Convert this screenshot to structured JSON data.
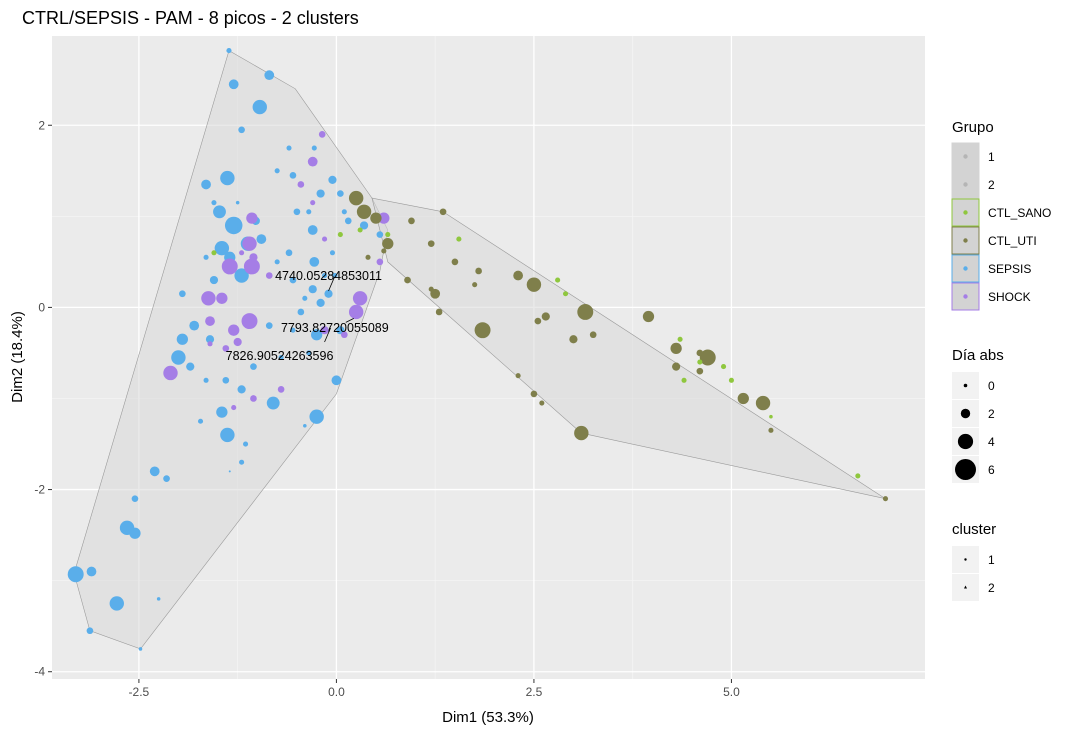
{
  "chart_data": {
    "type": "scatter",
    "title": "CTRL/SEPSIS - PAM - 8 picos - 2 clusters",
    "xlabel": "Dim1 (53.3%)",
    "ylabel": "Dim2 (18.4%)",
    "xlim": [
      -3.6,
      7.45
    ],
    "ylim": [
      -4.08,
      2.98
    ],
    "xticks": [
      -2.5,
      0.0,
      2.5,
      5.0
    ],
    "xtick_labels": [
      "-2.5",
      "0.0",
      "2.5",
      "5.0"
    ],
    "yticks": [
      -4,
      -2,
      0,
      2
    ],
    "ytick_labels": [
      "-4",
      "-2",
      "0",
      "2"
    ],
    "grid": true,
    "background": "#ebebeb",
    "colors": {
      "CTL_SANO": "#8fc73e",
      "CTL_UTI": "#7f7f4b",
      "SEPSIS": "#5aaeea",
      "SHOCK": "#a57ee6",
      "hull": "#d9d9d9"
    },
    "hulls": [
      {
        "cluster": "1",
        "points": [
          [
            -1.36,
            2.82
          ],
          [
            -0.52,
            2.4
          ],
          [
            0.45,
            1.2
          ],
          [
            0.65,
            0.85
          ],
          [
            0.55,
            0.4
          ],
          [
            0.0,
            -0.95
          ],
          [
            -2.48,
            -3.75
          ],
          [
            -3.12,
            -3.55
          ],
          [
            -3.32,
            -2.92
          ],
          [
            -1.36,
            2.82
          ]
        ]
      },
      {
        "cluster": "2",
        "points": [
          [
            0.45,
            1.2
          ],
          [
            1.35,
            1.05
          ],
          [
            6.95,
            -2.1
          ],
          [
            3.1,
            -1.38
          ],
          [
            0.65,
            0.5
          ],
          [
            0.45,
            1.2
          ]
        ]
      }
    ],
    "series": [
      {
        "name": "SEPSIS",
        "points": [
          [
            -1.36,
            2.82,
            1
          ],
          [
            -1.3,
            2.45,
            2.5
          ],
          [
            -0.85,
            2.55,
            2.5
          ],
          [
            -0.97,
            2.2,
            4
          ],
          [
            -1.2,
            1.95,
            1.5
          ],
          [
            -0.75,
            1.5,
            1
          ],
          [
            -1.38,
            1.42,
            4
          ],
          [
            -1.65,
            1.35,
            2.5
          ],
          [
            -1.55,
            1.15,
            1
          ],
          [
            -1.25,
            1.15,
            0.5
          ],
          [
            -1.48,
            1.05,
            3.5
          ],
          [
            -1.3,
            0.9,
            5
          ],
          [
            -1.02,
            0.95,
            2
          ],
          [
            -1.45,
            0.65,
            4
          ],
          [
            -1.12,
            0.7,
            4
          ],
          [
            -0.95,
            0.75,
            2.5
          ],
          [
            -1.65,
            0.55,
            1
          ],
          [
            -1.35,
            0.55,
            3
          ],
          [
            -1.2,
            0.35,
            4
          ],
          [
            -1.55,
            0.3,
            2
          ],
          [
            -1.95,
            0.15,
            1.5
          ],
          [
            -1.8,
            -0.2,
            2.5
          ],
          [
            -1.6,
            -0.35,
            2
          ],
          [
            -1.95,
            -0.35,
            3
          ],
          [
            -2.0,
            -0.55,
            4
          ],
          [
            -1.85,
            -0.65,
            2
          ],
          [
            -1.65,
            -0.8,
            1
          ],
          [
            -1.4,
            -0.8,
            1.5
          ],
          [
            -1.2,
            -0.9,
            2
          ],
          [
            -0.8,
            -1.05,
            3.5
          ],
          [
            -1.45,
            -1.15,
            3
          ],
          [
            -1.72,
            -1.25,
            1
          ],
          [
            -1.38,
            -1.4,
            4
          ],
          [
            -1.15,
            -1.5,
            1
          ],
          [
            -2.3,
            -1.8,
            2.5
          ],
          [
            -2.15,
            -1.88,
            1.5
          ],
          [
            -2.55,
            -2.1,
            1.5
          ],
          [
            -2.65,
            -2.42,
            4
          ],
          [
            -2.55,
            -2.48,
            3
          ],
          [
            -3.3,
            -2.93,
            4.5
          ],
          [
            -3.1,
            -2.9,
            2.5
          ],
          [
            -2.78,
            -3.25,
            4
          ],
          [
            -2.25,
            -3.2,
            0.5
          ],
          [
            -3.12,
            -3.55,
            1.5
          ],
          [
            -2.48,
            -3.75,
            0.5
          ],
          [
            -0.6,
            1.75,
            1
          ],
          [
            -0.55,
            1.45,
            1.5
          ],
          [
            -0.28,
            1.75,
            1
          ],
          [
            -0.2,
            1.25,
            2
          ],
          [
            -0.5,
            1.05,
            1.5
          ],
          [
            -0.3,
            0.85,
            2.5
          ],
          [
            -0.6,
            0.6,
            1.5
          ],
          [
            -0.28,
            0.5,
            2.5
          ],
          [
            -0.15,
            0.35,
            1
          ],
          [
            -0.05,
            0.6,
            1
          ],
          [
            -0.3,
            0.2,
            2
          ],
          [
            -0.2,
            0.05,
            2
          ],
          [
            -0.45,
            -0.05,
            1.5
          ],
          [
            -0.25,
            -0.3,
            3
          ],
          [
            0.05,
            -0.25,
            2
          ],
          [
            0.0,
            -0.8,
            2.5
          ],
          [
            -0.25,
            -1.2,
            4
          ],
          [
            -0.35,
            -0.5,
            1
          ],
          [
            -0.85,
            -0.2,
            1.5
          ],
          [
            -0.7,
            -0.55,
            1
          ],
          [
            -1.05,
            -0.65,
            1.5
          ],
          [
            0.05,
            1.25,
            1.5
          ],
          [
            -0.05,
            1.4,
            2
          ],
          [
            -0.35,
            1.05,
            1
          ],
          [
            0.1,
            1.05,
            1
          ],
          [
            -0.75,
            0.5,
            1
          ],
          [
            -0.55,
            0.3,
            1.5
          ],
          [
            -0.4,
            0.1,
            1
          ],
          [
            -0.1,
            0.15,
            2
          ],
          [
            -0.02,
            0.35,
            1
          ],
          [
            0.15,
            0.95,
            1.5
          ],
          [
            0.35,
            0.9,
            2
          ],
          [
            0.55,
            0.8,
            1.5
          ],
          [
            -0.55,
            -0.25,
            1
          ],
          [
            -1.2,
            -1.7,
            1
          ],
          [
            -0.4,
            -1.3,
            0.5
          ],
          [
            -1.35,
            -1.8,
            0
          ]
        ]
      },
      {
        "name": "SHOCK",
        "points": [
          [
            -0.3,
            1.6,
            2.5
          ],
          [
            -0.45,
            1.35,
            1.5
          ],
          [
            -0.18,
            1.9,
            1.5
          ],
          [
            -0.3,
            1.15,
            1
          ],
          [
            -1.07,
            0.98,
            3
          ],
          [
            -1.35,
            0.45,
            4.5
          ],
          [
            -1.07,
            0.45,
            4.5
          ],
          [
            -1.1,
            0.7,
            4
          ],
          [
            -1.62,
            0.1,
            4
          ],
          [
            -1.45,
            0.1,
            3
          ],
          [
            -1.6,
            -0.15,
            2.5
          ],
          [
            -1.1,
            -0.15,
            4.5
          ],
          [
            -1.3,
            -0.25,
            3
          ],
          [
            -1.4,
            -0.45,
            1.5
          ],
          [
            -1.05,
            0.55,
            2
          ],
          [
            -2.1,
            -0.72,
            4
          ],
          [
            -1.25,
            -0.38,
            2
          ],
          [
            -1.05,
            -1.0,
            1.5
          ],
          [
            -0.7,
            -0.9,
            1.5
          ],
          [
            -0.15,
            -0.25,
            2
          ],
          [
            0.1,
            -0.3,
            1.5
          ],
          [
            0.25,
            -0.05,
            4
          ],
          [
            0.3,
            0.1,
            4
          ],
          [
            0.6,
            0.98,
            3
          ],
          [
            0.55,
            0.5,
            1.5
          ],
          [
            -1.3,
            -1.1,
            1
          ],
          [
            -0.85,
            0.35,
            1.5
          ],
          [
            -0.15,
            0.75,
            1
          ],
          [
            -1.6,
            -0.4,
            1
          ],
          [
            -1.2,
            0.6,
            1
          ]
        ]
      },
      {
        "name": "CTL_UTI",
        "points": [
          [
            0.25,
            1.2,
            4
          ],
          [
            0.35,
            1.05,
            4
          ],
          [
            0.5,
            0.98,
            3
          ],
          [
            0.95,
            0.95,
            1.5
          ],
          [
            1.35,
            1.05,
            1.5
          ],
          [
            0.65,
            0.7,
            3
          ],
          [
            0.4,
            0.55,
            1
          ],
          [
            0.9,
            0.3,
            1.5
          ],
          [
            1.2,
            0.7,
            1.5
          ],
          [
            1.5,
            0.5,
            1.5
          ],
          [
            1.2,
            0.2,
            1
          ],
          [
            1.25,
            0.15,
            2.5
          ],
          [
            1.8,
            0.4,
            1.5
          ],
          [
            2.3,
            0.35,
            2.5
          ],
          [
            2.5,
            0.25,
            4
          ],
          [
            2.55,
            -0.15,
            1.5
          ],
          [
            1.75,
            0.25,
            1
          ],
          [
            1.3,
            -0.05,
            1.5
          ],
          [
            1.85,
            -0.25,
            4.5
          ],
          [
            2.65,
            -0.1,
            2
          ],
          [
            3.15,
            -0.05,
            4.5
          ],
          [
            3.0,
            -0.35,
            2
          ],
          [
            3.25,
            -0.3,
            1.5
          ],
          [
            3.95,
            -0.1,
            3
          ],
          [
            4.3,
            -0.45,
            3
          ],
          [
            4.7,
            -0.55,
            4.5
          ],
          [
            4.3,
            -0.65,
            2
          ],
          [
            4.6,
            -0.5,
            1.5
          ],
          [
            4.6,
            -0.7,
            1.5
          ],
          [
            5.15,
            -1.0,
            3
          ],
          [
            5.4,
            -1.05,
            4
          ],
          [
            5.5,
            -1.35,
            1
          ],
          [
            3.1,
            -1.38,
            4
          ],
          [
            2.5,
            -0.95,
            1.5
          ],
          [
            2.6,
            -1.05,
            1
          ],
          [
            2.3,
            -0.75,
            1
          ],
          [
            0.6,
            0.62,
            1
          ],
          [
            6.95,
            -2.1,
            1
          ]
        ]
      },
      {
        "name": "CTL_SANO",
        "points": [
          [
            0.05,
            0.8,
            1
          ],
          [
            0.3,
            0.85,
            1
          ],
          [
            0.65,
            0.8,
            1
          ],
          [
            1.55,
            0.75,
            1
          ],
          [
            2.8,
            0.3,
            1
          ],
          [
            2.9,
            0.15,
            1
          ],
          [
            4.35,
            -0.35,
            1
          ],
          [
            4.6,
            -0.6,
            1
          ],
          [
            4.9,
            -0.65,
            1
          ],
          [
            5.0,
            -0.8,
            1
          ],
          [
            6.6,
            -1.85,
            1
          ],
          [
            4.4,
            -0.8,
            1
          ],
          [
            5.5,
            -1.2,
            0.5
          ],
          [
            -1.55,
            0.6,
            1
          ]
        ]
      }
    ],
    "annotations": [
      {
        "text": "4740.05284853011",
        "x": -0.1,
        "y": 0.3,
        "arrow_to": [
          -0.1,
          0.18
        ]
      },
      {
        "text": "7793.82720055089",
        "x": -0.02,
        "y": -0.27,
        "arrow_to": [
          0.22,
          -0.12
        ]
      },
      {
        "text": "7826.90524263596",
        "x": -0.72,
        "y": -0.58,
        "arrow_to": [
          -0.15,
          -0.38
        ]
      }
    ],
    "legends": {
      "grupo": {
        "title": "Grupo",
        "items": [
          {
            "label": "1",
            "color": "#c8c8c8"
          },
          {
            "label": "2",
            "color": "#c8c8c8"
          },
          {
            "label": "CTL_SANO",
            "color": "#8fc73e"
          },
          {
            "label": "CTL_UTI",
            "color": "#7f7f4b"
          },
          {
            "label": "SEPSIS",
            "color": "#5aaeea"
          },
          {
            "label": "SHOCK",
            "color": "#a57ee6"
          }
        ]
      },
      "dia_abs": {
        "title": "Día abs",
        "items": [
          {
            "label": "0",
            "value": 0
          },
          {
            "label": "2",
            "value": 2
          },
          {
            "label": "4",
            "value": 4
          },
          {
            "label": "6",
            "value": 6
          }
        ]
      },
      "cluster": {
        "title": "cluster",
        "items": [
          {
            "label": "1",
            "shape": "circle"
          },
          {
            "label": "2",
            "shape": "triangle"
          }
        ]
      }
    }
  }
}
